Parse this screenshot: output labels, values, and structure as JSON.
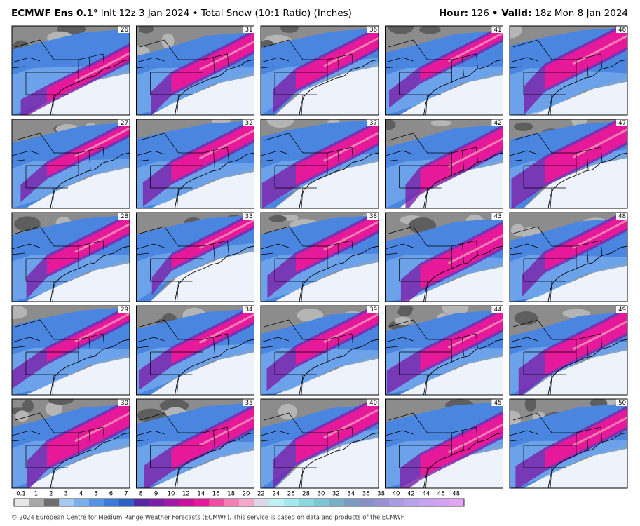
{
  "header": {
    "model": "ECMWF Ens 0.1°",
    "subtitle": "Init 12z 3 Jan 2024 • Total Snow (10:1 Ratio) (Inches)",
    "hour_label": "Hour:",
    "hour": "126",
    "valid_label": "• Valid:",
    "valid": "18z Mon 8 Jan 2024"
  },
  "panels": {
    "members": [
      26,
      27,
      28,
      29,
      30,
      31,
      32,
      33,
      34,
      35,
      36,
      37,
      38,
      39,
      40,
      41,
      42,
      43,
      44,
      45,
      46,
      47,
      48,
      49,
      50
    ]
  },
  "colorbar": {
    "labels": [
      "0.1",
      "1",
      "2",
      "3",
      "4",
      "5",
      "6",
      "7",
      "8",
      "9",
      "10",
      "12",
      "14",
      "16",
      "18",
      "20",
      "22",
      "24",
      "26",
      "28",
      "30",
      "32",
      "34",
      "36",
      "38",
      "40",
      "42",
      "44",
      "46",
      "48"
    ],
    "colors": [
      "#e6e6e6",
      "#a8a8a8",
      "#6e6e6e",
      "#a6c9f2",
      "#7aaeee",
      "#5793e4",
      "#3c7ad9",
      "#2f5fc4",
      "#56299f",
      "#7a1fa8",
      "#a01aa5",
      "#c8129c",
      "#e6199a",
      "#ef4f9f",
      "#f27fb6",
      "#f5a7cc",
      "#dcd7e8",
      "#bff0f3",
      "#a3e8ee",
      "#88d8e2",
      "#7cc5d4",
      "#78afc8",
      "#7c9bc2",
      "#8691c8",
      "#998fd3",
      "#a99be0",
      "#b7a1ea",
      "#c6a3f0",
      "#d3a0f2",
      "#e3a4f6"
    ]
  },
  "footer": "© 2024 European Centre for Medium-Range Weather Forecasts (ECMWF). This service is based on data and products of the ECMWF."
}
